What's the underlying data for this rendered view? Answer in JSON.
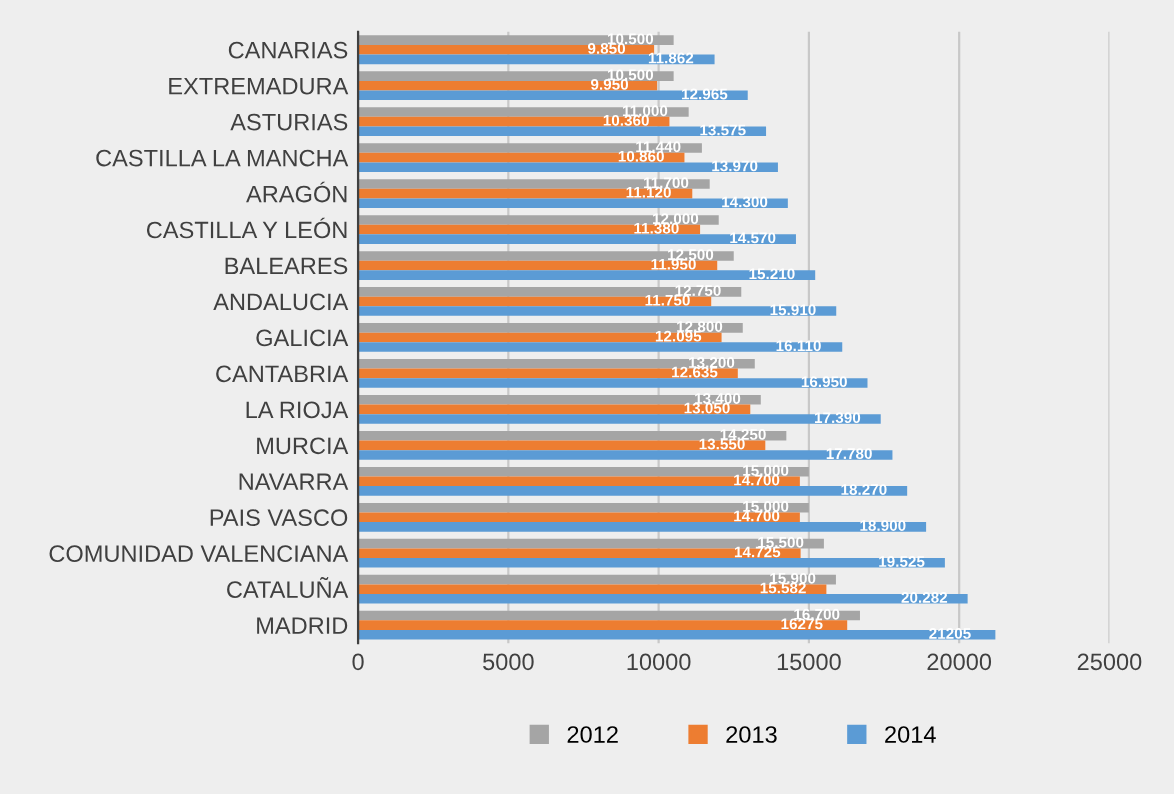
{
  "chart_data": {
    "type": "bar",
    "orientation": "horizontal",
    "categories": [
      "CANARIAS",
      "EXTREMADURA",
      "ASTURIAS",
      "CASTILLA LA MANCHA",
      "ARAGÓN",
      "CASTILLA Y LEÓN",
      "BALEARES",
      "ANDALUCIA",
      "GALICIA",
      "CANTABRIA",
      "LA RIOJA",
      "MURCIA",
      "NAVARRA",
      "PAIS VASCO",
      "COMUNIDAD VALENCIANA",
      "CATALUÑA",
      "MADRID"
    ],
    "series": [
      {
        "name": "2012",
        "color": "#a5a5a5",
        "values": [
          10500,
          10500,
          11000,
          11440,
          11700,
          12000,
          12500,
          12750,
          12800,
          13200,
          13400,
          14250,
          15000,
          15000,
          15500,
          15900,
          16700
        ],
        "value_labels": [
          "10.500",
          "10.500",
          "11.000",
          "11.440",
          "11.700",
          "12.000",
          "12.500",
          "12.750",
          "12.800",
          "13.200",
          "13.400",
          "14.250",
          "15.000",
          "15.000",
          "15.500",
          "15.900",
          "16.700"
        ]
      },
      {
        "name": "2013",
        "color": "#ed7d31",
        "values": [
          9850,
          9950,
          10360,
          10860,
          11120,
          11380,
          11950,
          11750,
          12095,
          12635,
          13050,
          13550,
          14700,
          14700,
          14725,
          15582,
          16275
        ],
        "value_labels": [
          "9.850",
          "9.950",
          "10.360",
          "10.860",
          "11.120",
          "11.380",
          "11.950",
          "11.750",
          "12.095",
          "12.635",
          "13.050",
          "13.550",
          "14.700",
          "14.700",
          "14.725",
          "15.582",
          "16275"
        ]
      },
      {
        "name": "2014",
        "color": "#5b9bd5",
        "values": [
          11862,
          12965,
          13575,
          13970,
          14300,
          14570,
          15210,
          15910,
          16110,
          16950,
          17390,
          17780,
          18270,
          18900,
          19525,
          20282,
          21205
        ],
        "value_labels": [
          "11.862",
          "12.965",
          "13.575",
          "13.970",
          "14.300",
          "14.570",
          "15.210",
          "15.910",
          "16.110",
          "16.950",
          "17.390",
          "17.780",
          "18.270",
          "18.900",
          "19.525",
          "20.282",
          "21205"
        ]
      }
    ],
    "xlim": [
      0,
      25000
    ],
    "xticks": [
      0,
      5000,
      10000,
      15000,
      20000,
      25000
    ],
    "grid": "x",
    "legend": "bottom"
  }
}
